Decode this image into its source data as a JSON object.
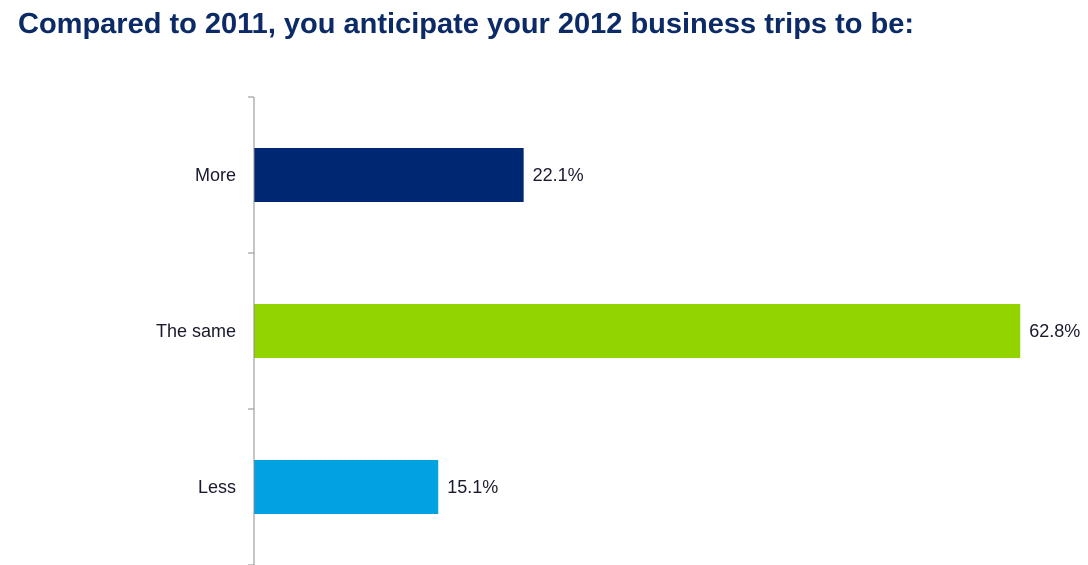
{
  "title": "Compared to 2011, you anticipate your 2012 business trips to be:",
  "chart_data": {
    "type": "bar",
    "orientation": "horizontal",
    "title": "Compared to 2011, you anticipate your 2012 business trips to be:",
    "categories": [
      "More",
      "The same",
      "Less"
    ],
    "values": [
      22.1,
      62.8,
      15.1
    ],
    "value_labels": [
      "22.1%",
      "62.8%",
      "15.1%"
    ],
    "colors": [
      "#002772",
      "#92d400",
      "#00a3e0"
    ],
    "xlabel": "",
    "ylabel": "",
    "xlim": [
      0,
      63.6
    ],
    "grid": false,
    "legend": "none"
  }
}
